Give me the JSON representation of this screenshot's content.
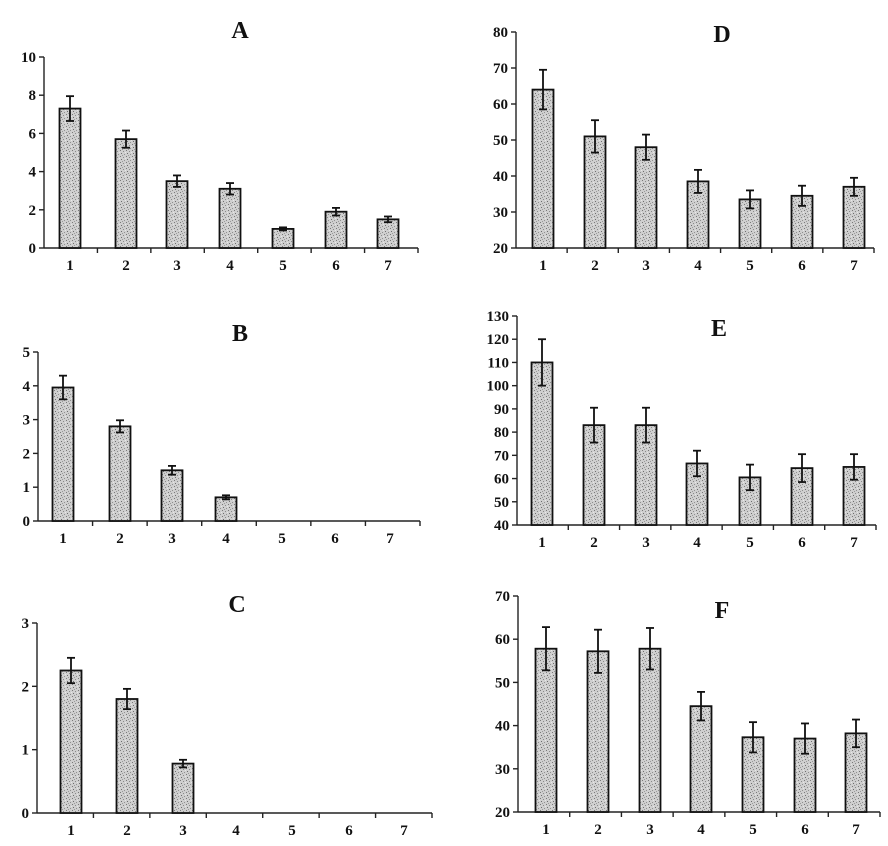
{
  "chart_data": [
    {
      "type": "bar",
      "title": "A",
      "categories": [
        "1",
        "2",
        "3",
        "4",
        "5",
        "6",
        "7"
      ],
      "values": [
        7.3,
        5.7,
        3.5,
        3.1,
        1.0,
        1.9,
        1.5
      ],
      "errors": [
        0.65,
        0.45,
        0.3,
        0.3,
        0.08,
        0.2,
        0.15
      ],
      "yticks": [
        "0",
        "2",
        "4",
        "6",
        "8",
        "10"
      ],
      "ylim": [
        0,
        10
      ],
      "xlabel": "",
      "ylabel": ""
    },
    {
      "type": "bar",
      "title": "B",
      "categories": [
        "1",
        "2",
        "3",
        "4",
        "5",
        "6",
        "7"
      ],
      "values": [
        3.95,
        2.8,
        1.5,
        0.7,
        0,
        0,
        0
      ],
      "errors": [
        0.35,
        0.18,
        0.13,
        0.06,
        0,
        0,
        0
      ],
      "yticks": [
        "0",
        "1",
        "2",
        "3",
        "4",
        "5"
      ],
      "ylim": [
        0,
        5
      ],
      "xlabel": "",
      "ylabel": ""
    },
    {
      "type": "bar",
      "title": "C",
      "categories": [
        "1",
        "2",
        "3",
        "4",
        "5",
        "6",
        "7"
      ],
      "values": [
        2.25,
        1.8,
        0.78,
        0,
        0,
        0,
        0
      ],
      "errors": [
        0.2,
        0.16,
        0.06,
        0,
        0,
        0,
        0
      ],
      "yticks": [
        "0",
        "1",
        "2",
        "3"
      ],
      "ylim": [
        0,
        3
      ],
      "xlabel": "",
      "ylabel": ""
    },
    {
      "type": "bar",
      "title": "D",
      "categories": [
        "1",
        "2",
        "3",
        "4",
        "5",
        "6",
        "7"
      ],
      "values": [
        64,
        51,
        48,
        38.5,
        33.5,
        34.5,
        37
      ],
      "errors": [
        5.5,
        4.5,
        3.5,
        3.2,
        2.5,
        2.8,
        2.5
      ],
      "yticks": [
        "20",
        "30",
        "40",
        "50",
        "60",
        "70",
        "80"
      ],
      "ylim": [
        20,
        80
      ],
      "xlabel": "",
      "ylabel": ""
    },
    {
      "type": "bar",
      "title": "E",
      "categories": [
        "1",
        "2",
        "3",
        "4",
        "5",
        "6",
        "7"
      ],
      "values": [
        110,
        83,
        83,
        66.5,
        60.5,
        64.5,
        65
      ],
      "errors": [
        10,
        7.5,
        7.5,
        5.5,
        5.5,
        6,
        5.5
      ],
      "yticks": [
        "40",
        "50",
        "60",
        "70",
        "80",
        "90",
        "100",
        "110",
        "120",
        "130"
      ],
      "ylim": [
        40,
        130
      ],
      "xlabel": "",
      "ylabel": ""
    },
    {
      "type": "bar",
      "title": "F",
      "categories": [
        "1",
        "2",
        "3",
        "4",
        "5",
        "6",
        "7"
      ],
      "values": [
        57.8,
        57.2,
        57.8,
        44.5,
        37.3,
        37,
        38.2
      ],
      "errors": [
        5,
        5,
        4.8,
        3.3,
        3.5,
        3.5,
        3.2
      ],
      "yticks": [
        "20",
        "30",
        "40",
        "50",
        "60",
        "70"
      ],
      "ylim": [
        20,
        70
      ],
      "xlabel": "",
      "ylabel": ""
    }
  ]
}
